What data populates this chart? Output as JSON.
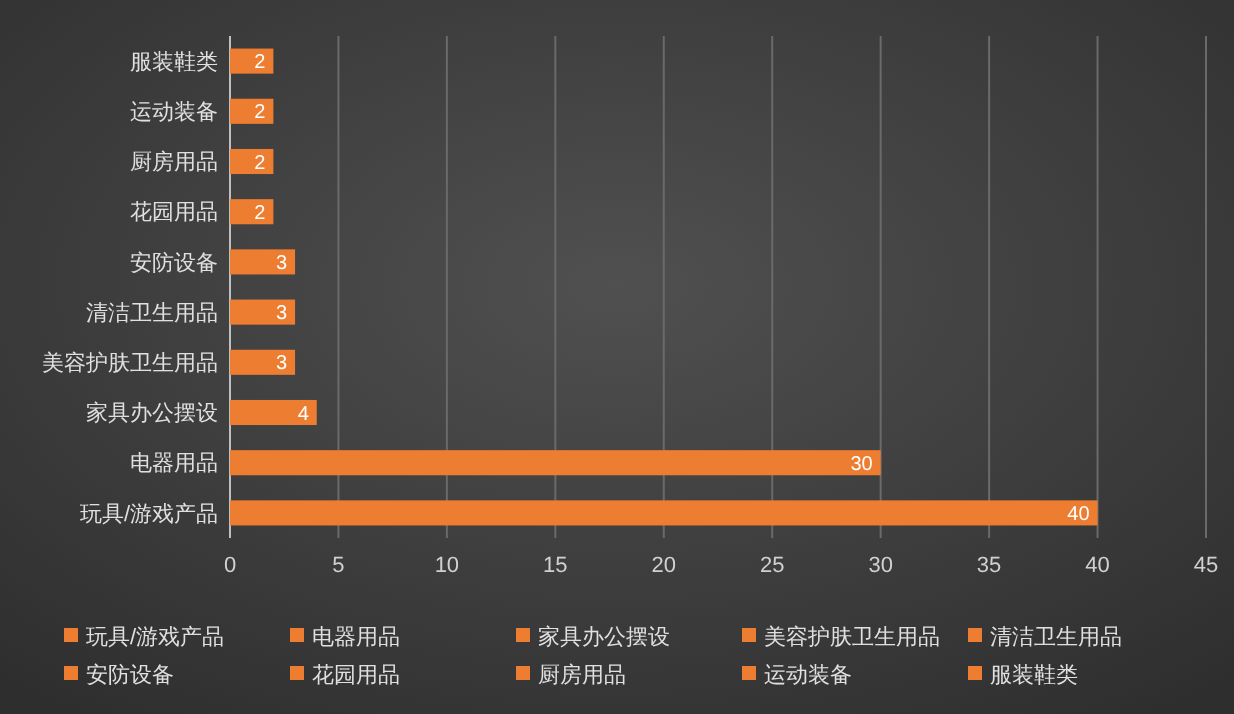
{
  "chart_data": {
    "type": "bar",
    "orientation": "horizontal",
    "stacked": true,
    "categories": [
      "服装鞋类",
      "运动装备",
      "厨房用品",
      "花园用品",
      "安防设备",
      "清洁卫生用品",
      "美容护肤卫生用品",
      "家具办公摆设",
      "电器用品",
      "玩具/游戏产品"
    ],
    "series": [
      {
        "name": "玩具/游戏产品",
        "color": "#ed7d31",
        "values": [
          null,
          null,
          null,
          null,
          null,
          null,
          null,
          null,
          null,
          40
        ]
      },
      {
        "name": "电器用品",
        "color": "#ed7d31",
        "values": [
          null,
          null,
          null,
          null,
          null,
          null,
          null,
          null,
          30,
          null
        ]
      },
      {
        "name": "家具办公摆设",
        "color": "#ed7d31",
        "values": [
          null,
          null,
          null,
          null,
          null,
          null,
          null,
          4,
          null,
          null
        ]
      },
      {
        "name": "美容护肤卫生用品",
        "color": "#ed7d31",
        "values": [
          null,
          null,
          null,
          null,
          null,
          null,
          3,
          null,
          null,
          null
        ]
      },
      {
        "name": "清洁卫生用品",
        "color": "#ed7d31",
        "values": [
          null,
          null,
          null,
          null,
          null,
          3,
          null,
          null,
          null,
          null
        ]
      },
      {
        "name": "安防设备",
        "color": "#ed7d31",
        "values": [
          null,
          null,
          null,
          null,
          3,
          null,
          null,
          null,
          null,
          null
        ]
      },
      {
        "name": "花园用品",
        "color": "#ed7d31",
        "values": [
          null,
          null,
          null,
          2,
          null,
          null,
          null,
          null,
          null,
          null
        ]
      },
      {
        "name": "厨房用品",
        "color": "#ed7d31",
        "values": [
          null,
          null,
          2,
          null,
          null,
          null,
          null,
          null,
          null,
          null
        ]
      },
      {
        "name": "运动装备",
        "color": "#ed7d31",
        "values": [
          null,
          2,
          null,
          null,
          null,
          null,
          null,
          null,
          null,
          null
        ]
      },
      {
        "name": "服装鞋类",
        "color": "#ed7d31",
        "values": [
          2,
          null,
          null,
          null,
          null,
          null,
          null,
          null,
          null,
          null
        ]
      }
    ],
    "xlim": [
      0,
      45
    ],
    "xticks": [
      0,
      5,
      10,
      15,
      20,
      25,
      30,
      35,
      40,
      45
    ],
    "grid": "x",
    "data_labels": true,
    "legend": "bottom"
  }
}
